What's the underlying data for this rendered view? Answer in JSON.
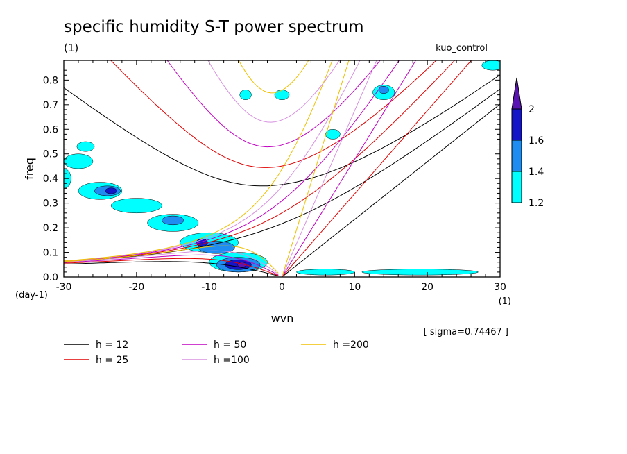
{
  "chart_data": {
    "type": "heatmap",
    "title": "specific humidity S-T power spectrum",
    "subtitle_left": "(1)",
    "subtitle_right": "kuo_control",
    "xlabel": "wvn",
    "ylabel": "freq",
    "x_unit": "(1)",
    "y_unit": "(day-1)",
    "xlim": [
      -30,
      30
    ],
    "ylim": [
      0,
      0.88
    ],
    "x_ticks": [
      -30,
      -20,
      -10,
      0,
      10,
      20,
      30
    ],
    "x_tick_labels": [
      "-30",
      "-20",
      "-10",
      "0",
      "10",
      "20",
      "30"
    ],
    "y_ticks": [
      0,
      0.1,
      0.2,
      0.3,
      0.4,
      0.5,
      0.6,
      0.7,
      0.8
    ],
    "y_tick_labels": [
      "0.0",
      "0.1",
      "0.2",
      "0.3",
      "0.4",
      "0.5",
      "0.6",
      "0.7",
      "0.8"
    ],
    "sigma_note": "[ sigma=0.74467 ]",
    "colorbar": {
      "levels": [
        1.2,
        1.4,
        1.6,
        2
      ],
      "level_labels": [
        "1.2",
        "1.4",
        "1.6",
        "2"
      ],
      "colors": [
        "#00ffff",
        "#1e8cf0",
        "#1414c8",
        "#5a14b4"
      ]
    },
    "contour_regions": [
      {
        "level": 1.2,
        "cx": -25,
        "cy": 0.35,
        "rx": 3.0,
        "ry": 0.035
      },
      {
        "level": 1.2,
        "cx": -20,
        "cy": 0.29,
        "rx": 3.5,
        "ry": 0.03
      },
      {
        "level": 1.2,
        "cx": -15,
        "cy": 0.22,
        "rx": 3.5,
        "ry": 0.035
      },
      {
        "level": 1.2,
        "cx": -10,
        "cy": 0.14,
        "rx": 4.0,
        "ry": 0.04
      },
      {
        "level": 1.2,
        "cx": -6,
        "cy": 0.06,
        "rx": 4.0,
        "ry": 0.04
      },
      {
        "level": 1.2,
        "cx": -28,
        "cy": 0.47,
        "rx": 2.0,
        "ry": 0.03
      },
      {
        "level": 1.2,
        "cx": -27,
        "cy": 0.53,
        "rx": 1.2,
        "ry": 0.02
      },
      {
        "level": 1.2,
        "cx": -30,
        "cy": 0.4,
        "rx": 1.0,
        "ry": 0.04
      },
      {
        "level": 1.2,
        "cx": 19,
        "cy": 0.02,
        "rx": 8.0,
        "ry": 0.012
      },
      {
        "level": 1.2,
        "cx": 6,
        "cy": 0.02,
        "rx": 4.0,
        "ry": 0.012
      },
      {
        "level": 1.2,
        "cx": 14,
        "cy": 0.75,
        "rx": 1.5,
        "ry": 0.03
      },
      {
        "level": 1.2,
        "cx": 0,
        "cy": 0.74,
        "rx": 1.0,
        "ry": 0.02
      },
      {
        "level": 1.2,
        "cx": 7,
        "cy": 0.58,
        "rx": 1.0,
        "ry": 0.02
      },
      {
        "level": 1.2,
        "cx": -5,
        "cy": 0.74,
        "rx": 0.8,
        "ry": 0.02
      },
      {
        "level": 1.2,
        "cx": 29,
        "cy": 0.86,
        "rx": 1.5,
        "ry": 0.02
      },
      {
        "level": 1.4,
        "cx": -24,
        "cy": 0.35,
        "rx": 1.8,
        "ry": 0.02
      },
      {
        "level": 1.4,
        "cx": -15,
        "cy": 0.23,
        "rx": 1.5,
        "ry": 0.018
      },
      {
        "level": 1.4,
        "cx": -9,
        "cy": 0.12,
        "rx": 2.5,
        "ry": 0.025
      },
      {
        "level": 1.4,
        "cx": -6,
        "cy": 0.05,
        "rx": 3.0,
        "ry": 0.03
      },
      {
        "level": 1.4,
        "cx": 14,
        "cy": 0.76,
        "rx": 0.7,
        "ry": 0.015
      },
      {
        "level": 1.6,
        "cx": -23.5,
        "cy": 0.35,
        "rx": 0.8,
        "ry": 0.012
      },
      {
        "level": 1.6,
        "cx": -11,
        "cy": 0.14,
        "rx": 0.8,
        "ry": 0.015
      },
      {
        "level": 1.6,
        "cx": -6,
        "cy": 0.05,
        "rx": 1.8,
        "ry": 0.02
      },
      {
        "level": 2,
        "cx": -5.5,
        "cy": 0.05,
        "rx": 0.6,
        "ry": 0.01
      }
    ],
    "series": [
      {
        "name": "h = 12",
        "color": "#000000",
        "h": 12
      },
      {
        "name": "h = 25",
        "color": "#e00000",
        "h": 25
      },
      {
        "name": "h = 50",
        "color": "#c000c0",
        "h": 50
      },
      {
        "name": "h =100",
        "color": "#d890e0",
        "h": 100
      },
      {
        "name": "h =200",
        "color": "#f0c000",
        "h": 200
      }
    ],
    "legend_position": "bottom-left",
    "grid": false
  }
}
